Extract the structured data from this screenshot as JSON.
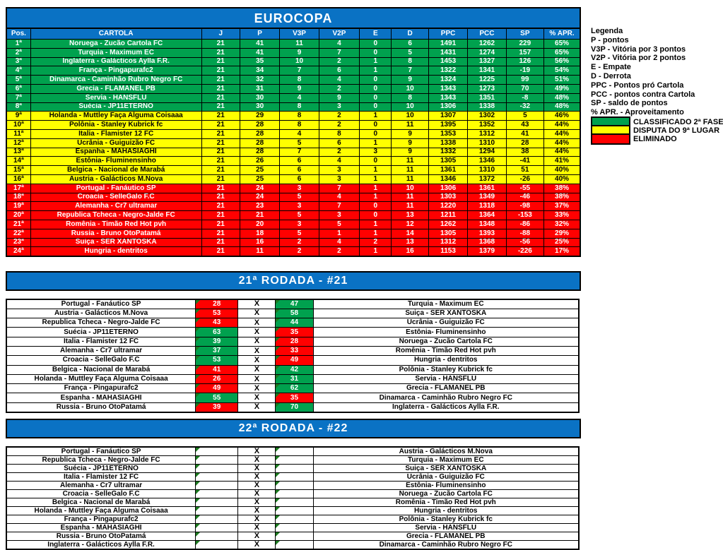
{
  "colors": {
    "banner_blue": "#0a72c4",
    "zone_green": "#00a14e",
    "zone_yellow": "#ffff00",
    "zone_red": "#ff0000",
    "comment_marker_green": "#1a7a1e"
  },
  "standings": {
    "title": "EUROCOPA",
    "columns": [
      "Pos.",
      "CARTOLA",
      "J",
      "P",
      "V3P",
      "V2P",
      "E",
      "D",
      "PPC",
      "PCC",
      "SP",
      "% APR."
    ],
    "rows": [
      {
        "pos": "1ª",
        "team": "Noruega - Zucão Cartola FC",
        "j": "21",
        "p": "41",
        "v3p": "11",
        "v2p": "4",
        "e": "0",
        "d": "6",
        "ppc": "1491",
        "pcc": "1262",
        "sp": "229",
        "apr": "65%",
        "zone": "green"
      },
      {
        "pos": "2ª",
        "team": "Turquia - Maximum EC",
        "j": "21",
        "p": "41",
        "v3p": "9",
        "v2p": "7",
        "e": "0",
        "d": "5",
        "ppc": "1431",
        "pcc": "1274",
        "sp": "157",
        "apr": "65%",
        "zone": "green"
      },
      {
        "pos": "3ª",
        "team": "Inglaterra - Galácticos Aylla F.R.",
        "j": "21",
        "p": "35",
        "v3p": "10",
        "v2p": "2",
        "e": "1",
        "d": "8",
        "ppc": "1453",
        "pcc": "1327",
        "sp": "126",
        "apr": "56%",
        "zone": "green"
      },
      {
        "pos": "4ª",
        "team": "França - Pingapurafc2",
        "j": "21",
        "p": "34",
        "v3p": "7",
        "v2p": "6",
        "e": "1",
        "d": "7",
        "ppc": "1322",
        "pcc": "1341",
        "sp": "-19",
        "apr": "54%",
        "zone": "green"
      },
      {
        "pos": "5ª",
        "team": "Dinamarca - Caminhão Rubro Negro FC",
        "j": "21",
        "p": "32",
        "v3p": "8",
        "v2p": "4",
        "e": "0",
        "d": "9",
        "ppc": "1324",
        "pcc": "1225",
        "sp": "99",
        "apr": "51%",
        "zone": "green"
      },
      {
        "pos": "6ª",
        "team": "Grecia - FLAMANEL PB",
        "j": "21",
        "p": "31",
        "v3p": "9",
        "v2p": "2",
        "e": "0",
        "d": "10",
        "ppc": "1343",
        "pcc": "1273",
        "sp": "70",
        "apr": "49%",
        "zone": "green"
      },
      {
        "pos": "7ª",
        "team": "Servia - HANSFLU",
        "j": "21",
        "p": "30",
        "v3p": "4",
        "v2p": "9",
        "e": "0",
        "d": "8",
        "ppc": "1343",
        "pcc": "1351",
        "sp": "-8",
        "apr": "48%",
        "zone": "green"
      },
      {
        "pos": "8ª",
        "team": "Suécia - JP11ETERNO",
        "j": "21",
        "p": "30",
        "v3p": "8",
        "v2p": "3",
        "e": "0",
        "d": "10",
        "ppc": "1306",
        "pcc": "1338",
        "sp": "-32",
        "apr": "48%",
        "zone": "green"
      },
      {
        "pos": "9ª",
        "team": "Holanda - Muttley Faça Alguma Coisaaa",
        "j": "21",
        "p": "29",
        "v3p": "8",
        "v2p": "2",
        "e": "1",
        "d": "10",
        "ppc": "1307",
        "pcc": "1302",
        "sp": "5",
        "apr": "46%",
        "zone": "yellow"
      },
      {
        "pos": "10ª",
        "team": "Polônia - Stanley Kubrick fc",
        "j": "21",
        "p": "28",
        "v3p": "8",
        "v2p": "2",
        "e": "0",
        "d": "11",
        "ppc": "1395",
        "pcc": "1352",
        "sp": "43",
        "apr": "44%",
        "zone": "yellow"
      },
      {
        "pos": "11ª",
        "team": "Italia - Flamister 12 FC",
        "j": "21",
        "p": "28",
        "v3p": "4",
        "v2p": "8",
        "e": "0",
        "d": "9",
        "ppc": "1353",
        "pcc": "1312",
        "sp": "41",
        "apr": "44%",
        "zone": "yellow"
      },
      {
        "pos": "12ª",
        "team": "Ucrânia - Guiguizão FC",
        "j": "21",
        "p": "28",
        "v3p": "5",
        "v2p": "6",
        "e": "1",
        "d": "9",
        "ppc": "1338",
        "pcc": "1310",
        "sp": "28",
        "apr": "44%",
        "zone": "yellow"
      },
      {
        "pos": "13ª",
        "team": "Espanha - MAHASIAGHI",
        "j": "21",
        "p": "28",
        "v3p": "7",
        "v2p": "2",
        "e": "3",
        "d": "9",
        "ppc": "1332",
        "pcc": "1294",
        "sp": "38",
        "apr": "44%",
        "zone": "yellow"
      },
      {
        "pos": "14ª",
        "team": "Estônia- Fluminensinho",
        "j": "21",
        "p": "26",
        "v3p": "6",
        "v2p": "4",
        "e": "0",
        "d": "11",
        "ppc": "1305",
        "pcc": "1346",
        "sp": "-41",
        "apr": "41%",
        "zone": "yellow"
      },
      {
        "pos": "15ª",
        "team": "Belgica - Nacional de Marabá",
        "j": "21",
        "p": "25",
        "v3p": "6",
        "v2p": "3",
        "e": "1",
        "d": "11",
        "ppc": "1361",
        "pcc": "1310",
        "sp": "51",
        "apr": "40%",
        "zone": "yellow"
      },
      {
        "pos": "16ª",
        "team": "Austria - Galácticos M.Nova",
        "j": "21",
        "p": "25",
        "v3p": "6",
        "v2p": "3",
        "e": "1",
        "d": "11",
        "ppc": "1346",
        "pcc": "1372",
        "sp": "-26",
        "apr": "40%",
        "zone": "yellow"
      },
      {
        "pos": "17ª",
        "team": "Portugal - Fanáutico SP",
        "j": "21",
        "p": "24",
        "v3p": "3",
        "v2p": "7",
        "e": "1",
        "d": "10",
        "ppc": "1306",
        "pcc": "1361",
        "sp": "-55",
        "apr": "38%",
        "zone": "red"
      },
      {
        "pos": "18ª",
        "team": "Croacia - SelleGalo F.C",
        "j": "21",
        "p": "24",
        "v3p": "5",
        "v2p": "4",
        "e": "1",
        "d": "11",
        "ppc": "1303",
        "pcc": "1349",
        "sp": "-46",
        "apr": "38%",
        "zone": "red"
      },
      {
        "pos": "19ª",
        "team": "Alemanha - Cr7 ultramar",
        "j": "21",
        "p": "23",
        "v3p": "3",
        "v2p": "7",
        "e": "0",
        "d": "11",
        "ppc": "1220",
        "pcc": "1318",
        "sp": "-98",
        "apr": "37%",
        "zone": "red"
      },
      {
        "pos": "20ª",
        "team": "Republica Tcheca - Negro-Jalde FC",
        "j": "21",
        "p": "21",
        "v3p": "5",
        "v2p": "3",
        "e": "0",
        "d": "13",
        "ppc": "1211",
        "pcc": "1364",
        "sp": "-153",
        "apr": "33%",
        "zone": "red"
      },
      {
        "pos": "21ª",
        "team": "Romênia - Timão Red Hot pvh",
        "j": "21",
        "p": "20",
        "v3p": "3",
        "v2p": "5",
        "e": "1",
        "d": "12",
        "ppc": "1262",
        "pcc": "1348",
        "sp": "-86",
        "apr": "32%",
        "zone": "red"
      },
      {
        "pos": "22ª",
        "team": "Russia - Bruno OtoPatamá",
        "j": "21",
        "p": "18",
        "v3p": "5",
        "v2p": "1",
        "e": "1",
        "d": "14",
        "ppc": "1305",
        "pcc": "1393",
        "sp": "-88",
        "apr": "29%",
        "zone": "red"
      },
      {
        "pos": "23ª",
        "team": "Suiça - SER XANTOSKA",
        "j": "21",
        "p": "16",
        "v3p": "2",
        "v2p": "4",
        "e": "2",
        "d": "13",
        "ppc": "1312",
        "pcc": "1368",
        "sp": "-56",
        "apr": "25%",
        "zone": "red"
      },
      {
        "pos": "24ª",
        "team": "Hungria - dentritos",
        "j": "21",
        "p": "11",
        "v3p": "2",
        "v2p": "2",
        "e": "1",
        "d": "16",
        "ppc": "1153",
        "pcc": "1379",
        "sp": "-226",
        "apr": "17%",
        "zone": "red"
      }
    ]
  },
  "legend": {
    "title": "Legenda",
    "lines": [
      "P - pontos",
      "V3P - Vitória por 3 pontos",
      "V2P - Vitória por 2 pontos",
      "E - Empate",
      "D - Derrota",
      "PPC - Pontos pró Cartola",
      "PCC - pontos contra Cartola",
      "SP - saldo de pontos",
      "% APR. - Aproveitamento"
    ],
    "zones": [
      {
        "label": "CLASSIFICADO 2ª FASE",
        "color": "green"
      },
      {
        "label": "DISPUTA DO 9ª LUGAR",
        "color": "yellow"
      },
      {
        "label": "ELIMINADO",
        "color": "red"
      }
    ]
  },
  "round21": {
    "title": "21ª RODADA - #21",
    "x_label": "X",
    "matches": [
      {
        "home": "Portugal - Fanáutico SP",
        "home_score": "28",
        "home_result": "loss",
        "away_score": "47",
        "away_result": "win",
        "away": "Turquia - Maximum EC"
      },
      {
        "home": "Austria - Galácticos M.Nova",
        "home_score": "53",
        "home_result": "loss",
        "away_score": "58",
        "away_result": "win",
        "away": "Suiça - SER XANTOSKA"
      },
      {
        "home": "Republica Tcheca - Negro-Jalde FC",
        "home_score": "43",
        "home_result": "loss",
        "away_score": "44",
        "away_result": "win",
        "away": "Ucrânia - Guiguizão FC"
      },
      {
        "home": "Suécia - JP11ETERNO",
        "home_score": "63",
        "home_result": "win",
        "away_score": "35",
        "away_result": "loss",
        "away": "Estônia- Fluminensinho"
      },
      {
        "home": "Italia - Flamister 12 FC",
        "home_score": "39",
        "home_result": "win",
        "away_score": "28",
        "away_result": "loss",
        "away": "Noruega - Zucão Cartola FC"
      },
      {
        "home": "Alemanha - Cr7 ultramar",
        "home_score": "37",
        "home_result": "win",
        "away_score": "33",
        "away_result": "loss",
        "away": "Romênia - Timão Red Hot pvh"
      },
      {
        "home": "Croacia - SelleGalo F.C",
        "home_score": "53",
        "home_result": "win",
        "away_score": "49",
        "away_result": "loss",
        "away": "Hungria - dentritos"
      },
      {
        "home": "Belgica - Nacional de Marabá",
        "home_score": "41",
        "home_result": "loss",
        "away_score": "42",
        "away_result": "win",
        "away": "Polônia - Stanley Kubrick fc"
      },
      {
        "home": "Holanda - Muttley Faça Alguma Coisaaa",
        "home_score": "26",
        "home_result": "loss",
        "away_score": "31",
        "away_result": "win",
        "away": "Servia - HANSFLU"
      },
      {
        "home": "França - Pingapurafc2",
        "home_score": "49",
        "home_result": "loss",
        "away_score": "62",
        "away_result": "win",
        "away": "Grecia - FLAMANEL PB"
      },
      {
        "home": "Espanha - MAHASIAGHI",
        "home_score": "55",
        "home_result": "win",
        "away_score": "35",
        "away_result": "loss",
        "away": "Dinamarca - Caminhão Rubro Negro FC"
      },
      {
        "home": "Russia - Bruno OtoPatamá",
        "home_score": "39",
        "home_result": "loss",
        "away_score": "70",
        "away_result": "win",
        "away": "Inglaterra - Galácticos Aylla F.R."
      }
    ]
  },
  "round22": {
    "title": "22ª RODADA - #22",
    "x_label": "X",
    "matches": [
      {
        "home": "Portugal - Fanáutico SP",
        "home_score": "",
        "home_result": "blank",
        "away_score": "",
        "away_result": "blank",
        "away": "Austria - Galácticos M.Nova"
      },
      {
        "home": "Republica Tcheca - Negro-Jalde FC",
        "home_score": "",
        "home_result": "blank",
        "away_score": "",
        "away_result": "blank",
        "away": "Turquia - Maximum EC"
      },
      {
        "home": "Suécia - JP11ETERNO",
        "home_score": "",
        "home_result": "blank",
        "away_score": "",
        "away_result": "blank",
        "away": "Suiça - SER XANTOSKA"
      },
      {
        "home": "Italia - Flamister 12 FC",
        "home_score": "",
        "home_result": "blank",
        "away_score": "",
        "away_result": "blank",
        "away": "Ucrânia - Guiguizão FC"
      },
      {
        "home": "Alemanha - Cr7 ultramar",
        "home_score": "",
        "home_result": "blank",
        "away_score": "",
        "away_result": "blank",
        "away": "Estônia- Fluminensinho"
      },
      {
        "home": "Croacia - SelleGalo F.C",
        "home_score": "",
        "home_result": "blank",
        "away_score": "",
        "away_result": "blank",
        "away": "Noruega - Zucão Cartola FC"
      },
      {
        "home": "Belgica - Nacional de Marabá",
        "home_score": "",
        "home_result": "blank",
        "away_score": "",
        "away_result": "blank",
        "away": "Romênia - Timão Red Hot pvh"
      },
      {
        "home": "Holanda - Muttley Faça Alguma Coisaaa",
        "home_score": "",
        "home_result": "blank",
        "away_score": "",
        "away_result": "blank",
        "away": "Hungria - dentritos"
      },
      {
        "home": "França - Pingapurafc2",
        "home_score": "",
        "home_result": "blank",
        "away_score": "",
        "away_result": "blank",
        "away": "Polônia - Stanley Kubrick fc"
      },
      {
        "home": "Espanha - MAHASIAGHI",
        "home_score": "",
        "home_result": "blank",
        "away_score": "",
        "away_result": "blank",
        "away": "Servia - HANSFLU"
      },
      {
        "home": "Russia - Bruno OtoPatamá",
        "home_score": "",
        "home_result": "blank",
        "away_score": "",
        "away_result": "blank",
        "away": "Grecia - FLAMANEL PB"
      },
      {
        "home": "Inglaterra - Galácticos Aylla F.R.",
        "home_score": "",
        "home_result": "blank",
        "away_score": "",
        "away_result": "blank",
        "away": "Dinamarca - Caminhão Rubro Negro FC"
      }
    ]
  }
}
